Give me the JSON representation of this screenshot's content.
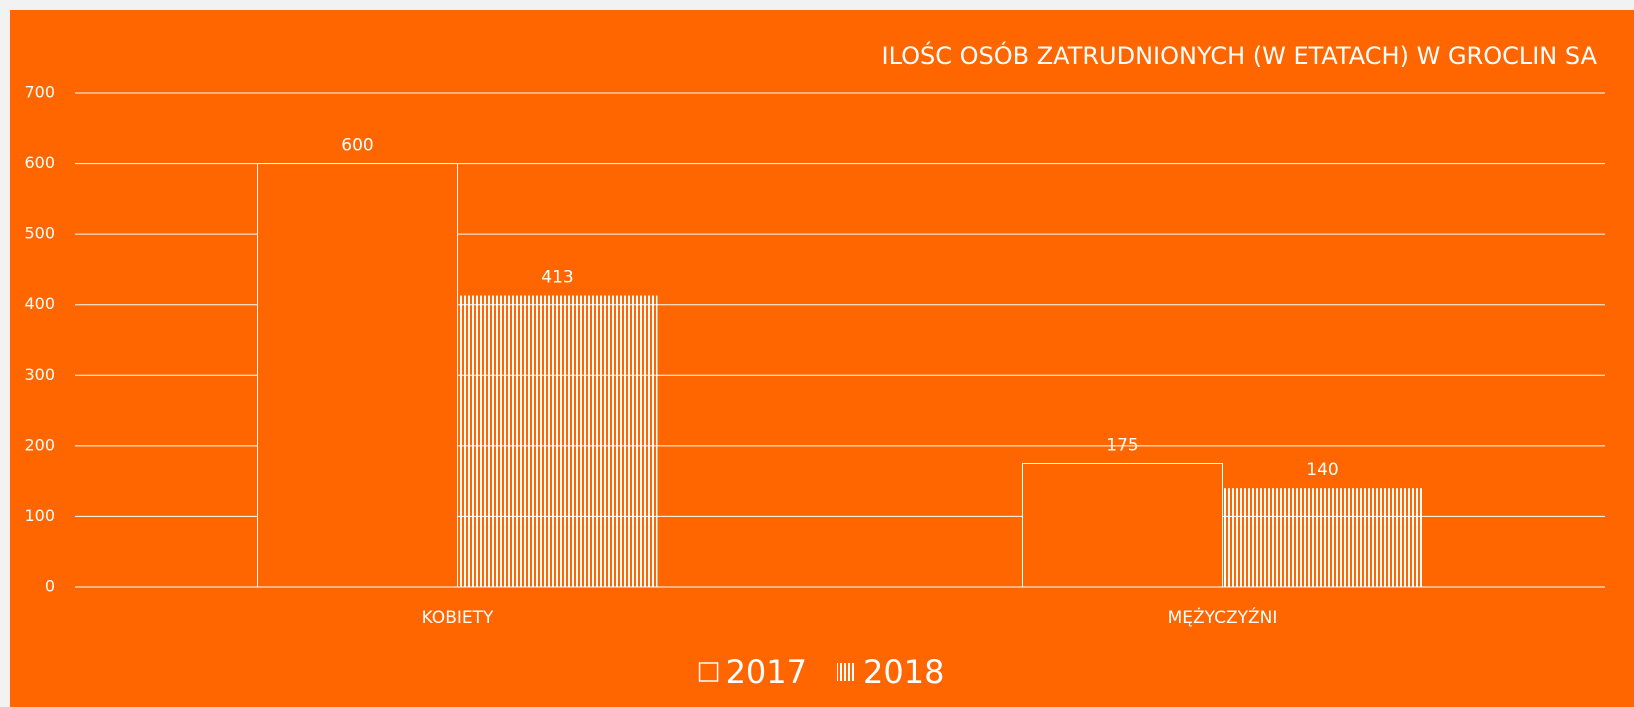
{
  "chart_data": {
    "type": "bar",
    "title": "ILOŚC OSÓB ZATRUDNIONYCH (W ETATACH) W GROCLIN SA",
    "categories": [
      "KOBIETY",
      "MĘŻYCZYŹNI"
    ],
    "series": [
      {
        "name": "2017",
        "color": "#ffffff",
        "values": [
          600,
          175
        ]
      },
      {
        "name": "2018",
        "color": "#ffffff",
        "hatch": "vertical",
        "values": [
          413,
          140
        ]
      }
    ],
    "ylim": [
      0,
      700
    ],
    "yticks": [
      0,
      100,
      200,
      300,
      400,
      500,
      600,
      700
    ],
    "grid": true,
    "background": "#ff6600",
    "legend": "bottom"
  }
}
